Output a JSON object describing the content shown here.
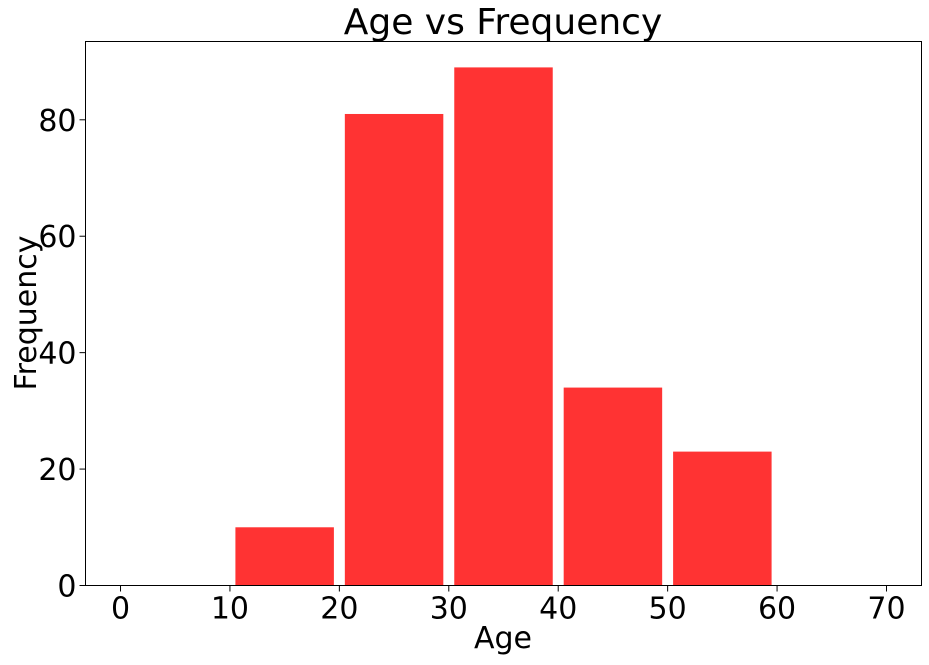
{
  "chart_data": {
    "type": "bar",
    "title": "Age vs Frequency",
    "xlabel": "Age",
    "ylabel": "Frequency",
    "bars": [
      {
        "x_start": 10,
        "x_end": 20,
        "value": 10
      },
      {
        "x_start": 20,
        "x_end": 30,
        "value": 81
      },
      {
        "x_start": 30,
        "x_end": 40,
        "value": 89
      },
      {
        "x_start": 40,
        "x_end": 50,
        "value": 34
      },
      {
        "x_start": 50,
        "x_end": 60,
        "value": 23
      }
    ],
    "xlim": [
      -3.2,
      73.2
    ],
    "ylim": [
      0,
      93.45
    ],
    "xticks": [
      0,
      10,
      20,
      30,
      40,
      50,
      60,
      70
    ],
    "yticks": [
      0,
      20,
      40,
      60,
      80
    ],
    "bar_color": "#ff3333",
    "grid": false,
    "legend": "none"
  }
}
